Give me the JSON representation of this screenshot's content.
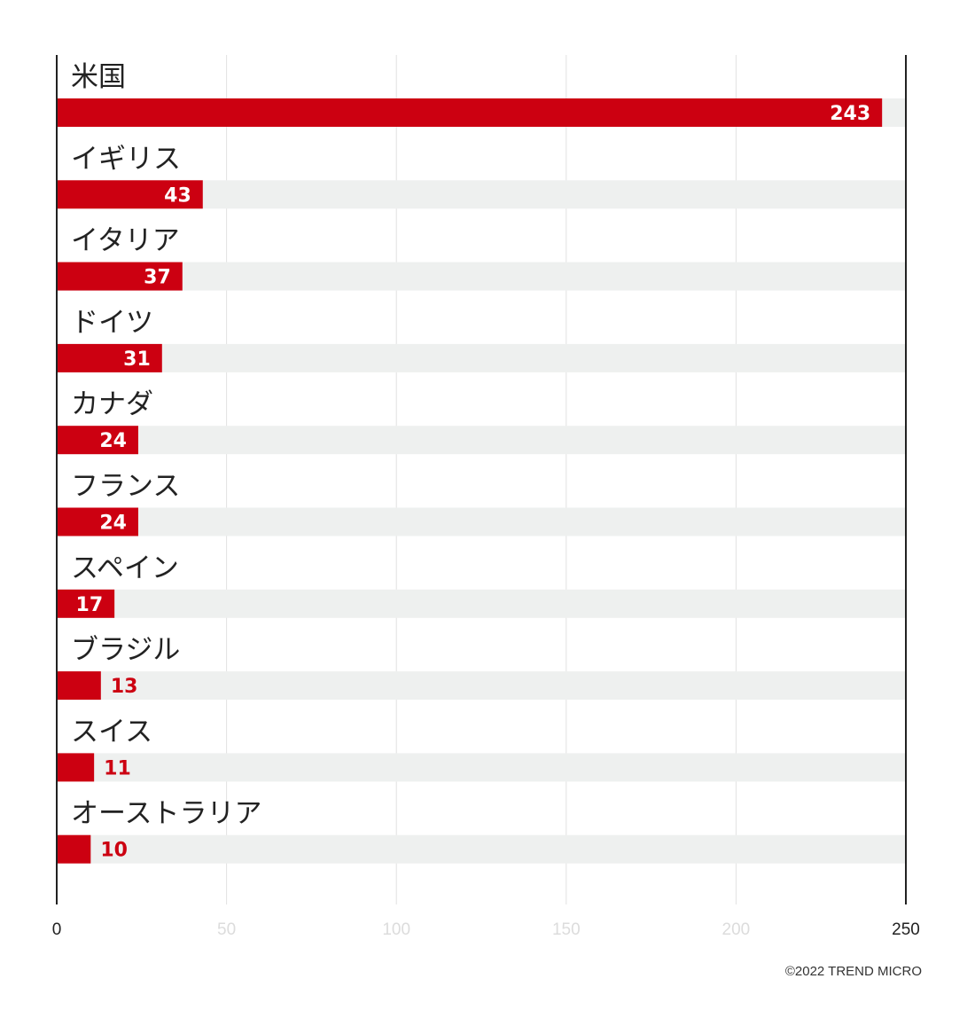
{
  "chart_data": {
    "type": "bar",
    "orientation": "horizontal",
    "categories": [
      "米国",
      "イギリス",
      "イタリア",
      "ドイツ",
      "カナダ",
      "フランス",
      "スペイン",
      "ブラジル",
      "スイス",
      "オーストラリア"
    ],
    "values": [
      243,
      43,
      37,
      31,
      24,
      24,
      17,
      13,
      11,
      10
    ],
    "xlim": [
      0,
      250
    ],
    "xticks": [
      0,
      50,
      100,
      150,
      200,
      250
    ],
    "xtick_labels": [
      "0",
      "50",
      "100",
      "150",
      "200",
      "250"
    ],
    "title": "",
    "xlabel": "",
    "ylabel": "",
    "grid": true,
    "legend": "none"
  },
  "colors": {
    "bar": "#cc0011",
    "track": "#eef0ef",
    "grid": "#e2e2e2",
    "axis": "#222222",
    "faint_tick": "#dcdcdc"
  },
  "credit": "©2022 TREND MICRO"
}
